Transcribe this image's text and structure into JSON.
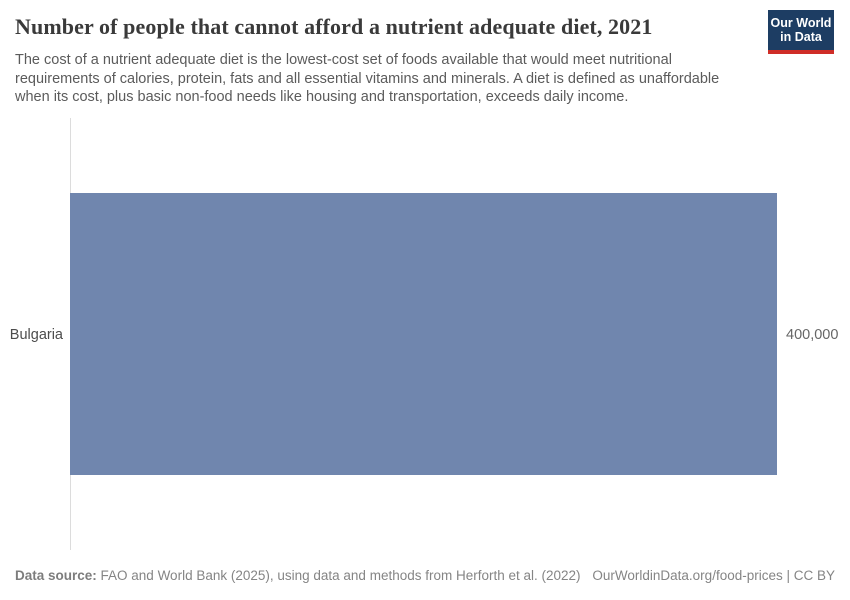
{
  "header": {
    "title": "Number of people that cannot afford a nutrient adequate diet, 2021",
    "subtitle": "The cost of a nutrient adequate diet is the lowest-cost set of foods available that would meet nutritional requirements of calories, protein, fats and all essential vitamins and minerals. A diet is defined as unaffordable when its cost, plus basic non-food needs like housing and transportation, exceeds daily income.",
    "logo": {
      "line1": "Our World",
      "line2": "in Data",
      "background_color": "#1d3d63",
      "accent_color": "#cf2d27"
    }
  },
  "chart_data": {
    "type": "bar",
    "orientation": "horizontal",
    "title": "Number of people that cannot afford a nutrient adequate diet, 2021",
    "categories": [
      "Bulgaria"
    ],
    "values": [
      400000
    ],
    "value_labels": [
      "400,000"
    ],
    "xlabel": "",
    "ylabel": "",
    "xlim": [
      0,
      400000
    ],
    "bar_color": "#7086ae",
    "axis_line_color": "#dcdcdc",
    "grid": false,
    "legend": false
  },
  "footer": {
    "source_label": "Data source:",
    "source_text": " FAO and World Bank (2025), using data and methods from Herforth et al. (2022)",
    "right_text": "OurWorldinData.org/food-prices | CC BY"
  }
}
